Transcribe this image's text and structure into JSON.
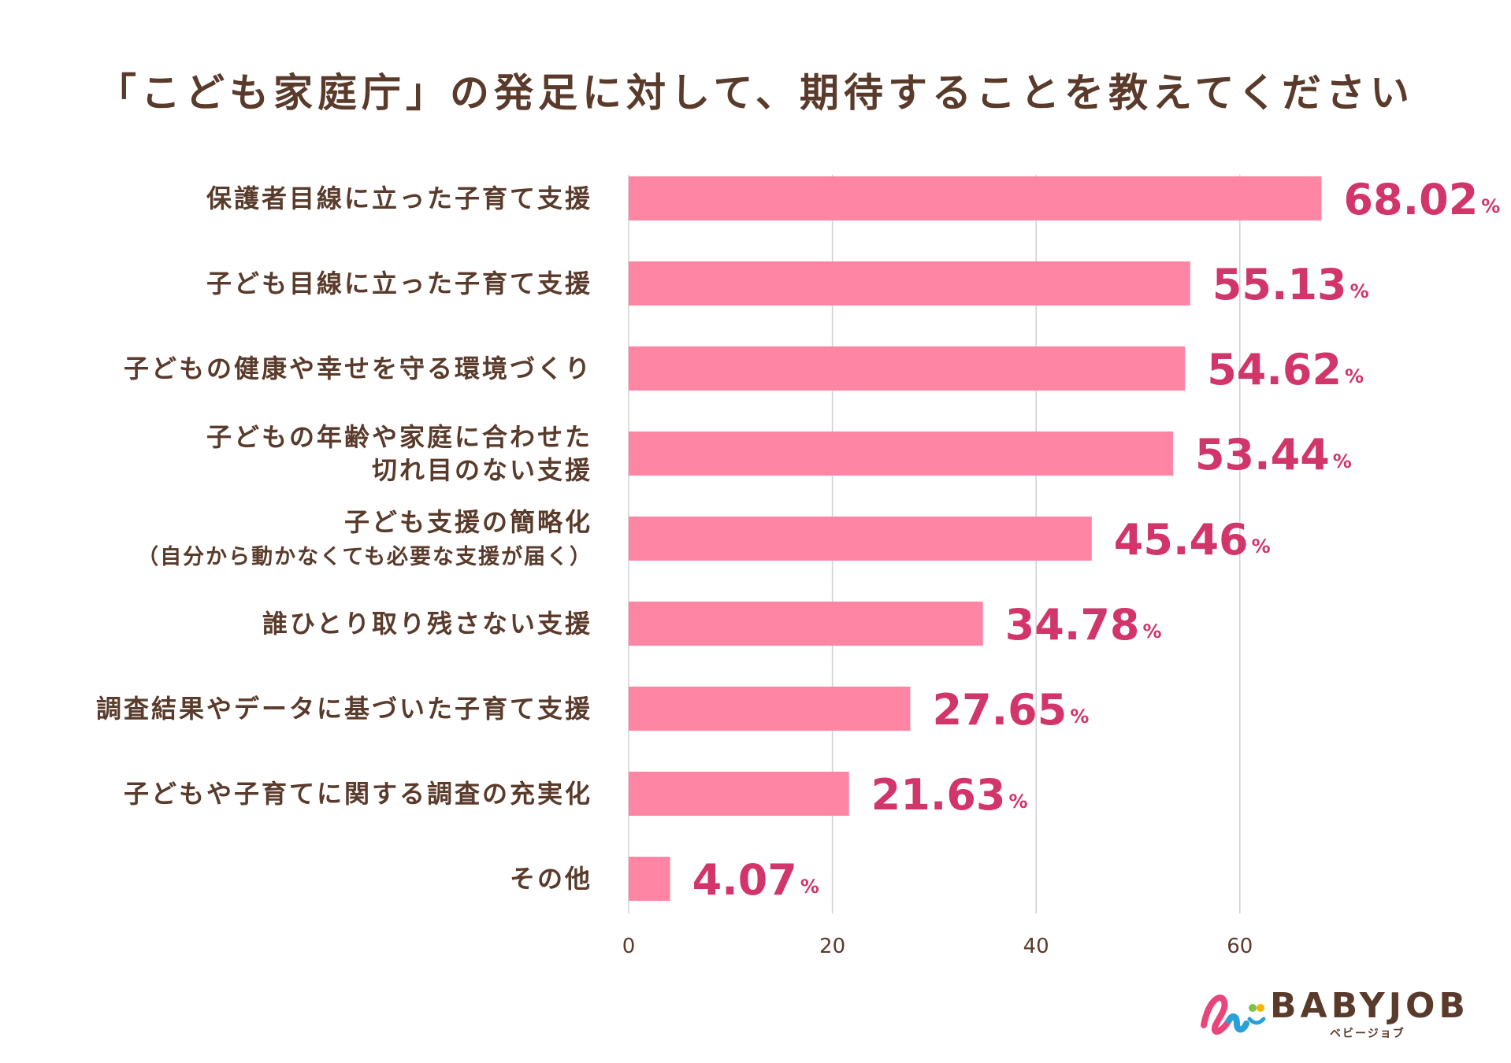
{
  "colors": {
    "bar": "#ff85a5",
    "value": "#d1356a",
    "text": "#5a3b2b",
    "grid": "#d0d0d0"
  },
  "chart_data": {
    "type": "bar",
    "orientation": "horizontal",
    "title": "「こども家庭庁」の発足に対して、期待することを教えてください",
    "categories": [
      [
        "保護者目線に立った子育て支援"
      ],
      [
        "子ども目線に立った子育て支援"
      ],
      [
        "子どもの健康や幸せを守る環境づくり"
      ],
      [
        "子どもの年齢や家庭に合わせた",
        "切れ目のない支援"
      ],
      [
        "子ども支援の簡略化",
        "（自分から動かなくても必要な支援が届く）"
      ],
      [
        "誰ひとり取り残さない支援"
      ],
      [
        "調査結果やデータに基づいた子育て支援"
      ],
      [
        "子どもや子育てに関する調査の充実化"
      ],
      [
        "その他"
      ]
    ],
    "values": [
      68.02,
      55.13,
      54.62,
      53.44,
      45.46,
      34.78,
      27.65,
      21.63,
      4.07
    ],
    "value_labels": [
      "68.02",
      "55.13",
      "54.62",
      "53.44",
      "45.46",
      "34.78",
      "27.65",
      "21.63",
      "4.07"
    ],
    "unit": "%",
    "xticks": [
      "0",
      "20",
      "40",
      "60"
    ],
    "xlim": [
      0,
      80
    ],
    "grid": true
  },
  "logo": {
    "text": "BABYJOB",
    "subtext": "ベビージョブ"
  }
}
